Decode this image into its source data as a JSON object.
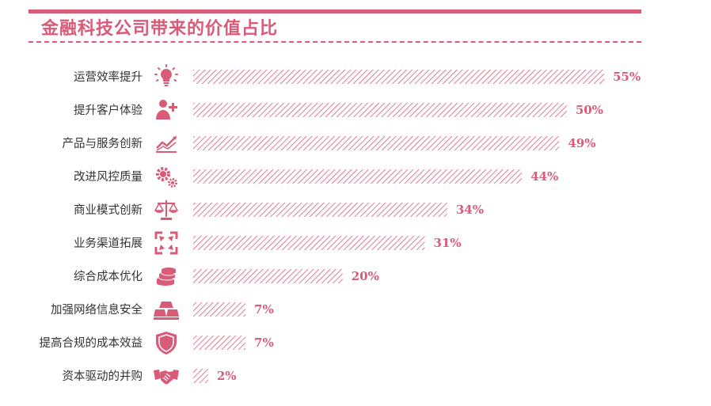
{
  "title": "金融科技公司带来的价值占比",
  "colors": {
    "accent": "#d85b78",
    "text": "#333333"
  },
  "chart_data": {
    "type": "bar",
    "orientation": "horizontal",
    "title": "金融科技公司带来的价值占比",
    "unit": "%",
    "grid": false,
    "categories": [
      "运营效率提升",
      "提升客户体验",
      "产品与服务创新",
      "改进风控质量",
      "商业模式创新",
      "业务渠道拓展",
      "综合成本优化",
      "加强网络信息安全",
      "提高合规的成本效益",
      "资本驱动的并购"
    ],
    "values": [
      55,
      50,
      49,
      44,
      34,
      31,
      20,
      7,
      7,
      2
    ],
    "value_labels": [
      "55%",
      "50%",
      "49%",
      "44%",
      "34%",
      "31%",
      "20%",
      "7%",
      "7%",
      "2%"
    ],
    "icons": [
      "lightbulb-icon",
      "user-plus-icon",
      "trend-chart-icon",
      "gears-icon",
      "balance-scale-icon",
      "expand-arrows-icon",
      "coin-stack-icon",
      "gold-bars-icon",
      "shield-icon",
      "handshake-icon"
    ]
  }
}
